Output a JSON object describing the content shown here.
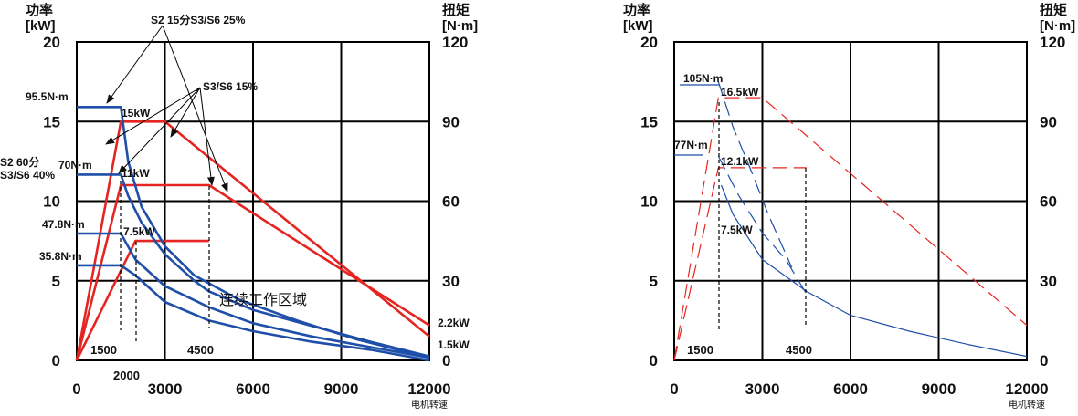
{
  "chart_data": [
    {
      "type": "line",
      "y_left_label": [
        "功率",
        "[kW]"
      ],
      "y_right_label": [
        "扭矩",
        "[N·m]"
      ],
      "xlabel": "电机转速",
      "xlim": [
        0,
        12000
      ],
      "ylim_left": [
        0,
        20
      ],
      "ylim_right": [
        0,
        120
      ],
      "x_ticks": [
        "0",
        "3000",
        "6000",
        "9000",
        "12000"
      ],
      "y_left_ticks": [
        "0",
        "5",
        "10",
        "15",
        "20"
      ],
      "y_right_ticks": [
        "0",
        "30",
        "60",
        "90",
        "120"
      ],
      "grid": true,
      "region_label": "连续工作区域",
      "series": [
        {
          "color": "#e52521",
          "style": "solid",
          "x": [
            0,
            1500,
            3000,
            12000
          ],
          "y": [
            0,
            15,
            15,
            1.5
          ]
        },
        {
          "color": "#e52521",
          "style": "solid",
          "x": [
            0,
            1500,
            4500,
            12000
          ],
          "y": [
            0,
            11,
            11,
            2.2
          ]
        },
        {
          "color": "#e52521",
          "style": "solid",
          "x": [
            0,
            2000,
            4500
          ],
          "y": [
            0,
            7.5,
            7.5
          ]
        },
        {
          "color": "#1f4fa8",
          "style": "solid",
          "x": [
            0,
            1500,
            1750,
            2200,
            3000,
            4000,
            5500,
            7500,
            9500,
            12000
          ],
          "y": [
            95.5,
            95.5,
            75,
            58,
            43,
            32,
            23,
            15,
            8,
            1
          ]
        },
        {
          "color": "#1f4fa8",
          "style": "solid",
          "x": [
            0,
            1500,
            1750,
            2200,
            3000,
            4000,
            4500,
            6000,
            8000,
            10000,
            12000
          ],
          "y": [
            70,
            70,
            62,
            52,
            40,
            30,
            26,
            19,
            13,
            7,
            1.5
          ]
        },
        {
          "color": "#1f4fa8",
          "style": "solid",
          "x": [
            0,
            1500,
            2000,
            3000,
            4500,
            6000,
            8000,
            10000,
            12000
          ],
          "y": [
            47.8,
            47.8,
            38,
            28,
            20,
            14,
            9,
            5,
            1
          ]
        },
        {
          "color": "#1f4fa8",
          "style": "solid",
          "x": [
            0,
            1500,
            2000,
            3000,
            4500,
            6000,
            8000,
            10000,
            12000
          ],
          "y": [
            35.8,
            35.8,
            32,
            22,
            15,
            11,
            7,
            4,
            0
          ]
        }
      ],
      "annotations": [
        {
          "text": "S2 15分S3/S6 25%"
        },
        {
          "text": "S3/S6 15%"
        },
        {
          "text": "95.5N·m"
        },
        {
          "text": "15kW"
        },
        {
          "text": "S2 60分"
        },
        {
          "text": "S3/S6 40%"
        },
        {
          "text": "70N·m"
        },
        {
          "text": "11kW"
        },
        {
          "text": "47.8N·m"
        },
        {
          "text": "7.5kW"
        },
        {
          "text": "35.8N·m"
        },
        {
          "text": "2.2kW"
        },
        {
          "text": "1.5kW"
        },
        {
          "text": "1500"
        },
        {
          "text": "4500"
        },
        {
          "text": "2000"
        }
      ]
    },
    {
      "type": "line",
      "y_left_label": [
        "功率",
        "[kW]"
      ],
      "y_right_label": [
        "扭矩",
        "[N·m]"
      ],
      "xlabel": "电机转速",
      "xlim": [
        0,
        12000
      ],
      "ylim_left": [
        0,
        20
      ],
      "ylim_right": [
        0,
        120
      ],
      "x_ticks": [
        "0",
        "3000",
        "6000",
        "9000",
        "12000"
      ],
      "y_left_ticks": [
        "0",
        "5",
        "10",
        "15",
        "20"
      ],
      "y_right_ticks": [
        "0",
        "30",
        "60",
        "90",
        "120"
      ],
      "grid": true,
      "series": [
        {
          "color": "#e52521",
          "style": "dashed",
          "x": [
            0,
            1500,
            3000,
            12000
          ],
          "y": [
            0,
            16.5,
            16.5,
            2.2
          ]
        },
        {
          "color": "#e52521",
          "style": "dashed",
          "x": [
            0,
            1500,
            4500
          ],
          "y": [
            0,
            12.1,
            12.1
          ]
        },
        {
          "color": "#1f4fa8",
          "style": "dashed",
          "x": [
            1500,
            2000,
            2600,
            3200,
            4000
          ],
          "y": [
            105,
            88,
            72,
            55,
            35
          ]
        },
        {
          "color": "#1f4fa8",
          "style": "dashed",
          "x": [
            1500,
            2200,
            3000,
            3800,
            4500
          ],
          "y": [
            77,
            62,
            48,
            38,
            25
          ]
        },
        {
          "color": "#1f4fa8",
          "style": "solid",
          "x": [
            1600,
            2000,
            3000,
            4500,
            6000,
            8000,
            10000,
            12000
          ],
          "y": [
            66,
            55,
            38,
            26,
            17,
            11,
            6,
            1.5
          ]
        }
      ],
      "annotations": [
        {
          "text": "105N·m"
        },
        {
          "text": "16.5kW"
        },
        {
          "text": "77N·m"
        },
        {
          "text": "12.1kW"
        },
        {
          "text": "7.5kW"
        },
        {
          "text": "1500"
        },
        {
          "text": "4500"
        }
      ]
    }
  ]
}
